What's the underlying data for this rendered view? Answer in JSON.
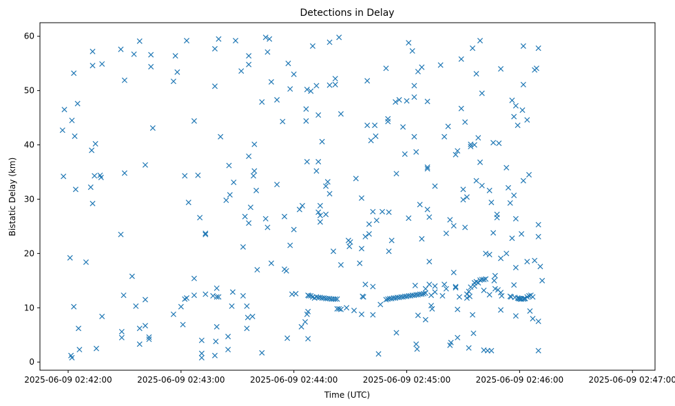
{
  "chart_data": {
    "type": "scatter",
    "title": "Detections in Delay",
    "xlabel": "Time (UTC)",
    "ylabel": "Bistatic Delay (km)",
    "marker": "x",
    "color": "#1f77b4",
    "x_unit": "seconds after 2025-06-09 02:42:00",
    "xlim": [
      -15,
      312
    ],
    "ylim": [
      -1.5,
      62.5
    ],
    "x_ticks": [
      {
        "value": 0,
        "label": "2025-06-09 02:42:00"
      },
      {
        "value": 60,
        "label": "2025-06-09 02:43:00"
      },
      {
        "value": 120,
        "label": "2025-06-09 02:44:00"
      },
      {
        "value": 180,
        "label": "2025-06-09 02:45:00"
      },
      {
        "value": 240,
        "label": "2025-06-09 02:46:00"
      },
      {
        "value": 300,
        "label": "2025-06-09 02:47:00"
      }
    ],
    "y_ticks": [
      {
        "value": 0,
        "label": "0"
      },
      {
        "value": 10,
        "label": "10"
      },
      {
        "value": 20,
        "label": "20"
      },
      {
        "value": 30,
        "label": "30"
      },
      {
        "value": 40,
        "label": "40"
      },
      {
        "value": 50,
        "label": "50"
      },
      {
        "value": 60,
        "label": "60"
      }
    ],
    "points": [
      [
        -3,
        42.7
      ],
      [
        -2.5,
        34.2
      ],
      [
        -2,
        46.5
      ],
      [
        2,
        44.5
      ],
      [
        3,
        53.2
      ],
      [
        1,
        19.2
      ],
      [
        1.5,
        1.2
      ],
      [
        2,
        0.8
      ],
      [
        3,
        10.2
      ],
      [
        3.5,
        41.6
      ],
      [
        4,
        31.8
      ],
      [
        5,
        47.6
      ],
      [
        5.5,
        6.2
      ],
      [
        6,
        2.3
      ],
      [
        9.5,
        18.4
      ],
      [
        12,
        32.2
      ],
      [
        12.5,
        39.0
      ],
      [
        13,
        57.2
      ],
      [
        13,
        54.6
      ],
      [
        13,
        29.2
      ],
      [
        14,
        34.3
      ],
      [
        14.5,
        40.2
      ],
      [
        15,
        2.5
      ],
      [
        17,
        34.4
      ],
      [
        17.5,
        34.0
      ],
      [
        18,
        54.9
      ],
      [
        18,
        8.4
      ],
      [
        28,
        57.6
      ],
      [
        28,
        23.5
      ],
      [
        28.5,
        5.6
      ],
      [
        28.5,
        4.5
      ],
      [
        29.5,
        12.3
      ],
      [
        30,
        51.9
      ],
      [
        30,
        34.8
      ],
      [
        34,
        15.8
      ],
      [
        36,
        10.3
      ],
      [
        38,
        3.3
      ],
      [
        38,
        6.2
      ],
      [
        38,
        59.1
      ],
      [
        41,
        11.5
      ],
      [
        41,
        6.7
      ],
      [
        41,
        36.3
      ],
      [
        43,
        4.2
      ],
      [
        43,
        4.6
      ],
      [
        44,
        56.6
      ],
      [
        44,
        54.4
      ],
      [
        45,
        43.1
      ],
      [
        35,
        56.7
      ],
      [
        56,
        8.8
      ],
      [
        56,
        51.7
      ],
      [
        57,
        56.4
      ],
      [
        58,
        53.4
      ],
      [
        60,
        10.2
      ],
      [
        61,
        6.9
      ],
      [
        62,
        34.3
      ],
      [
        62,
        11.6
      ],
      [
        63,
        11.8
      ],
      [
        63,
        59.2
      ],
      [
        64,
        29.4
      ],
      [
        67,
        12.3
      ],
      [
        67,
        15.4
      ],
      [
        67,
        44.4
      ],
      [
        69,
        34.4
      ],
      [
        70,
        26.6
      ],
      [
        71,
        0.8
      ],
      [
        71,
        1.6
      ],
      [
        71,
        4.0
      ],
      [
        73,
        23.7
      ],
      [
        73,
        23.5
      ],
      [
        73,
        12.5
      ],
      [
        77,
        12.2
      ],
      [
        78,
        57.7
      ],
      [
        78,
        50.8
      ],
      [
        78,
        1.2
      ],
      [
        78.5,
        3.8
      ],
      [
        79,
        13.6
      ],
      [
        79,
        12.0
      ],
      [
        79,
        6.5
      ],
      [
        80,
        59.5
      ],
      [
        80,
        12.0
      ],
      [
        81,
        41.5
      ],
      [
        84,
        29.8
      ],
      [
        85,
        2.3
      ],
      [
        85,
        4.7
      ],
      [
        85.5,
        36.2
      ],
      [
        86,
        30.8
      ],
      [
        87,
        10.3
      ],
      [
        87.5,
        12.9
      ],
      [
        88,
        33.1
      ],
      [
        89,
        59.2
      ],
      [
        92,
        53.6
      ],
      [
        93,
        12.2
      ],
      [
        93,
        21.2
      ],
      [
        94,
        26.8
      ],
      [
        95,
        6.2
      ],
      [
        95,
        10.3
      ],
      [
        95.5,
        8.2
      ],
      [
        96,
        25.6
      ],
      [
        96,
        37.9
      ],
      [
        96,
        56.4
      ],
      [
        96,
        54.8
      ],
      [
        97,
        28.5
      ],
      [
        98,
        8.4
      ],
      [
        98.5,
        34.3
      ],
      [
        99,
        35.2
      ],
      [
        99,
        40.1
      ],
      [
        100,
        31.6
      ],
      [
        100.5,
        17.0
      ],
      [
        103,
        1.7
      ],
      [
        103,
        47.9
      ],
      [
        105,
        59.8
      ],
      [
        105,
        26.4
      ],
      [
        106,
        57.1
      ],
      [
        106,
        24.8
      ],
      [
        107,
        59.5
      ],
      [
        108,
        18.2
      ],
      [
        108,
        51.6
      ],
      [
        111,
        48.3
      ],
      [
        111,
        32.7
      ],
      [
        114,
        44.3
      ],
      [
        115,
        26.8
      ],
      [
        115,
        17.1
      ],
      [
        116,
        16.8
      ],
      [
        116.5,
        4.4
      ],
      [
        117,
        55.0
      ],
      [
        118,
        50.3
      ],
      [
        118,
        21.5
      ],
      [
        119,
        12.5
      ],
      [
        120,
        53.0
      ],
      [
        120,
        24.4
      ],
      [
        121,
        12.6
      ],
      [
        123,
        28.1
      ],
      [
        124,
        6.5
      ],
      [
        124.5,
        28.8
      ],
      [
        126,
        7.4
      ],
      [
        126.5,
        46.6
      ],
      [
        126.5,
        44.4
      ],
      [
        127,
        50.2
      ],
      [
        127,
        36.9
      ],
      [
        127,
        8.8
      ],
      [
        127.5,
        4.3
      ],
      [
        127.5,
        12.3
      ],
      [
        127.5,
        9.3
      ],
      [
        128,
        12.2
      ],
      [
        129,
        12.2
      ],
      [
        129,
        49.9
      ],
      [
        130,
        12.0
      ],
      [
        130,
        58.2
      ],
      [
        131,
        11.8
      ],
      [
        132,
        12.0
      ],
      [
        132,
        35.2
      ],
      [
        132,
        50.9
      ],
      [
        133,
        11.9
      ],
      [
        133,
        45.5
      ],
      [
        133,
        36.9
      ],
      [
        133,
        27.6
      ],
      [
        134,
        11.9
      ],
      [
        134,
        28.8
      ],
      [
        134,
        25.8
      ],
      [
        134,
        27.0
      ],
      [
        135,
        11.8
      ],
      [
        135,
        40.6
      ],
      [
        136,
        11.8
      ],
      [
        137,
        11.7
      ],
      [
        137,
        32.4
      ],
      [
        137,
        27.2
      ],
      [
        138,
        11.7
      ],
      [
        138,
        33.2
      ],
      [
        139,
        11.7
      ],
      [
        139,
        51.0
      ],
      [
        139,
        58.9
      ],
      [
        139,
        31.0
      ],
      [
        140,
        11.6
      ],
      [
        141,
        11.6
      ],
      [
        141,
        20.4
      ],
      [
        142,
        11.6
      ],
      [
        142,
        52.2
      ],
      [
        142,
        51.1
      ],
      [
        143,
        11.6
      ],
      [
        143,
        9.8
      ],
      [
        144,
        59.8
      ],
      [
        144,
        9.8
      ],
      [
        145,
        9.7
      ],
      [
        145,
        45.7
      ],
      [
        145,
        17.9
      ],
      [
        148,
        10.0
      ],
      [
        149,
        22.4
      ],
      [
        149.5,
        21.3
      ],
      [
        150,
        22.1
      ],
      [
        152,
        9.5
      ],
      [
        153,
        33.8
      ],
      [
        155,
        18.2
      ],
      [
        156,
        8.8
      ],
      [
        156,
        30.2
      ],
      [
        156,
        20.9
      ],
      [
        156.5,
        12.1
      ],
      [
        157,
        12.0
      ],
      [
        158,
        14.3
      ],
      [
        158,
        23.1
      ],
      [
        159,
        51.8
      ],
      [
        159,
        43.6
      ],
      [
        160,
        23.6
      ],
      [
        160,
        25.4
      ],
      [
        161,
        40.8
      ],
      [
        162,
        27.7
      ],
      [
        162,
        8.7
      ],
      [
        162,
        13.9
      ],
      [
        163,
        43.6
      ],
      [
        163.5,
        41.6
      ],
      [
        164,
        26.1
      ],
      [
        165,
        1.5
      ],
      [
        166,
        10.6
      ],
      [
        167,
        27.7
      ],
      [
        169,
        11.5
      ],
      [
        169,
        54.1
      ],
      [
        170,
        44.8
      ],
      [
        170,
        44.3
      ],
      [
        170,
        11.6
      ],
      [
        170.5,
        27.6
      ],
      [
        170.5,
        20.4
      ],
      [
        171,
        11.7
      ],
      [
        172,
        11.7
      ],
      [
        172,
        22.4
      ],
      [
        173,
        11.8
      ],
      [
        174,
        11.8
      ],
      [
        174,
        47.9
      ],
      [
        174.5,
        5.4
      ],
      [
        174.5,
        34.7
      ],
      [
        175,
        11.9
      ],
      [
        176,
        11.9
      ],
      [
        176,
        48.3
      ],
      [
        177,
        12.0
      ],
      [
        178,
        12.0
      ],
      [
        178,
        43.3
      ],
      [
        179,
        12.1
      ],
      [
        179,
        38.3
      ],
      [
        180,
        12.1
      ],
      [
        180,
        48.1
      ],
      [
        181,
        12.2
      ],
      [
        181,
        26.5
      ],
      [
        181,
        58.8
      ],
      [
        182,
        12.2
      ],
      [
        183,
        12.3
      ],
      [
        183,
        57.3
      ],
      [
        184,
        12.3
      ],
      [
        184,
        41.5
      ],
      [
        184,
        50.9
      ],
      [
        184,
        48.8
      ],
      [
        184.5,
        14.1
      ],
      [
        185,
        12.4
      ],
      [
        185,
        38.7
      ],
      [
        185,
        3.3
      ],
      [
        185.5,
        2.4
      ],
      [
        186,
        12.4
      ],
      [
        186,
        8.6
      ],
      [
        186,
        53.5
      ],
      [
        187,
        12.5
      ],
      [
        187,
        29.0
      ],
      [
        188,
        12.5
      ],
      [
        188,
        54.3
      ],
      [
        188,
        22.7
      ],
      [
        189,
        12.6
      ],
      [
        190,
        12.7
      ],
      [
        190,
        13.5
      ],
      [
        190,
        7.8
      ],
      [
        191,
        35.9
      ],
      [
        191,
        35.6
      ],
      [
        191,
        48.0
      ],
      [
        191,
        28.1
      ],
      [
        192,
        14.3
      ],
      [
        192,
        18.5
      ],
      [
        192,
        26.7
      ],
      [
        193,
        12.3
      ],
      [
        193,
        10.4
      ],
      [
        193.5,
        9.8
      ],
      [
        195,
        32.4
      ],
      [
        195,
        14.0
      ],
      [
        195,
        12.9
      ],
      [
        198,
        54.7
      ],
      [
        199,
        12.2
      ],
      [
        200,
        14.3
      ],
      [
        200,
        41.5
      ],
      [
        201,
        23.7
      ],
      [
        201,
        13.5
      ],
      [
        202,
        43.4
      ],
      [
        203,
        26.2
      ],
      [
        203,
        3.1
      ],
      [
        203.5,
        3.6
      ],
      [
        205,
        16.5
      ],
      [
        205,
        25.1
      ],
      [
        206,
        38.2
      ],
      [
        206,
        13.9
      ],
      [
        206,
        13.7
      ],
      [
        207,
        38.9
      ],
      [
        207,
        9.7
      ],
      [
        207,
        4.5
      ],
      [
        208,
        12.0
      ],
      [
        209,
        55.8
      ],
      [
        209,
        46.7
      ],
      [
        210,
        31.8
      ],
      [
        210,
        29.9
      ],
      [
        211,
        44.2
      ],
      [
        211,
        24.8
      ],
      [
        212,
        30.4
      ],
      [
        212,
        12.5
      ],
      [
        212,
        11.8
      ],
      [
        213,
        13.0
      ],
      [
        213,
        2.6
      ],
      [
        213.5,
        12.1
      ],
      [
        214,
        40.1
      ],
      [
        214,
        39.7
      ],
      [
        214,
        13.8
      ],
      [
        215,
        57.8
      ],
      [
        215,
        8.7
      ],
      [
        215.5,
        5.3
      ],
      [
        216,
        40.0
      ],
      [
        216,
        14.0
      ],
      [
        216,
        14.6
      ],
      [
        217,
        53.1
      ],
      [
        217,
        33.4
      ],
      [
        217,
        14.8
      ],
      [
        218,
        41.3
      ],
      [
        218,
        14.6
      ],
      [
        219,
        59.2
      ],
      [
        219,
        36.8
      ],
      [
        219,
        15.1
      ],
      [
        220,
        32.5
      ],
      [
        220,
        49.5
      ],
      [
        220,
        15.2
      ],
      [
        221,
        15.2
      ],
      [
        221,
        13.2
      ],
      [
        221,
        2.2
      ],
      [
        222,
        15.3
      ],
      [
        222,
        20.0
      ],
      [
        223,
        2.1
      ],
      [
        224,
        31.6
      ],
      [
        224,
        12.4
      ],
      [
        224,
        19.8
      ],
      [
        225,
        29.4
      ],
      [
        225,
        2.1
      ],
      [
        226,
        23.8
      ],
      [
        226,
        40.4
      ],
      [
        226.5,
        15.0
      ],
      [
        227,
        15.9
      ],
      [
        227,
        13.5
      ],
      [
        228,
        27.2
      ],
      [
        228,
        26.6
      ],
      [
        228.5,
        13.3
      ],
      [
        229,
        40.3
      ],
      [
        230,
        54.0
      ],
      [
        230,
        19.1
      ],
      [
        230,
        9.6
      ],
      [
        230,
        12.8
      ],
      [
        230.5,
        12.2
      ],
      [
        233,
        20.0
      ],
      [
        233,
        35.8
      ],
      [
        234,
        32.1
      ],
      [
        235,
        12.1
      ],
      [
        235,
        29.3
      ],
      [
        235.5,
        12.0
      ],
      [
        236,
        48.2
      ],
      [
        236,
        22.8
      ],
      [
        237,
        45.2
      ],
      [
        237,
        30.7
      ],
      [
        237,
        14.2
      ],
      [
        237.5,
        11.9
      ],
      [
        238,
        26.4
      ],
      [
        238,
        47.2
      ],
      [
        238,
        17.4
      ],
      [
        238,
        8.5
      ],
      [
        239,
        43.6
      ],
      [
        239,
        11.8
      ],
      [
        239.5,
        11.7
      ],
      [
        240,
        11.7
      ],
      [
        240.5,
        11.6
      ],
      [
        241,
        11.6
      ],
      [
        241,
        23.6
      ],
      [
        241.5,
        46.4
      ],
      [
        242,
        58.2
      ],
      [
        242,
        51.1
      ],
      [
        242,
        33.4
      ],
      [
        242,
        11.6
      ],
      [
        242.5,
        11.7
      ],
      [
        243,
        11.7
      ],
      [
        244,
        44.6
      ],
      [
        244,
        18.5
      ],
      [
        244,
        12.0
      ],
      [
        245,
        34.5
      ],
      [
        245,
        12.2
      ],
      [
        245.5,
        9.4
      ],
      [
        246,
        12.3
      ],
      [
        247,
        12.0
      ],
      [
        247,
        8.0
      ],
      [
        248,
        53.8
      ],
      [
        248,
        18.7
      ],
      [
        249,
        54.1
      ],
      [
        250,
        2.1
      ],
      [
        250,
        7.5
      ],
      [
        250,
        57.8
      ],
      [
        250,
        25.3
      ],
      [
        250,
        23.1
      ],
      [
        251,
        17.6
      ],
      [
        252,
        15.0
      ]
    ]
  }
}
